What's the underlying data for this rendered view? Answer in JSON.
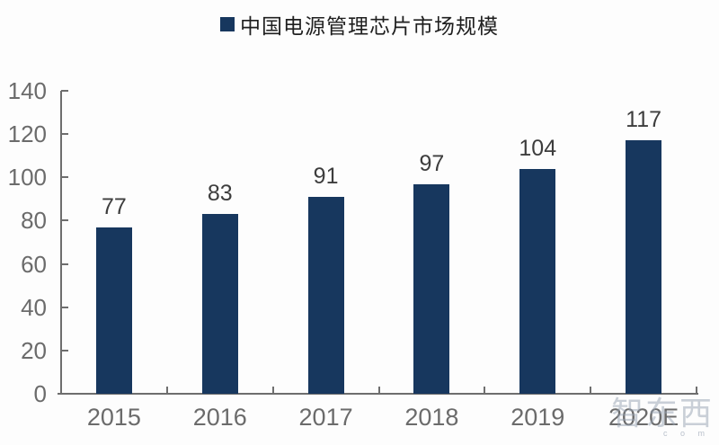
{
  "legend": {
    "label": "中国电源管理芯片市场规模",
    "swatch_color": "#17375E"
  },
  "watermark": {
    "text": "智东西",
    "subtext": "c o m"
  },
  "chart_data": {
    "type": "bar",
    "title": "",
    "xlabel": "",
    "ylabel": "",
    "categories": [
      "2015",
      "2016",
      "2017",
      "2018",
      "2019",
      "2020E"
    ],
    "values": [
      77,
      83,
      91,
      97,
      104,
      117
    ],
    "series_name": "中国电源管理芯片市场规模",
    "ylim": [
      0,
      140
    ],
    "yticks": [
      0,
      20,
      40,
      60,
      80,
      100,
      120,
      140
    ],
    "bar_color": "#17375E",
    "axis_color": "#6e6e6e",
    "label_color": "#3d3d3d",
    "tick_label_color": "#6b6b6b",
    "grid": false,
    "legend_position": "top-center",
    "data_labels": true
  }
}
